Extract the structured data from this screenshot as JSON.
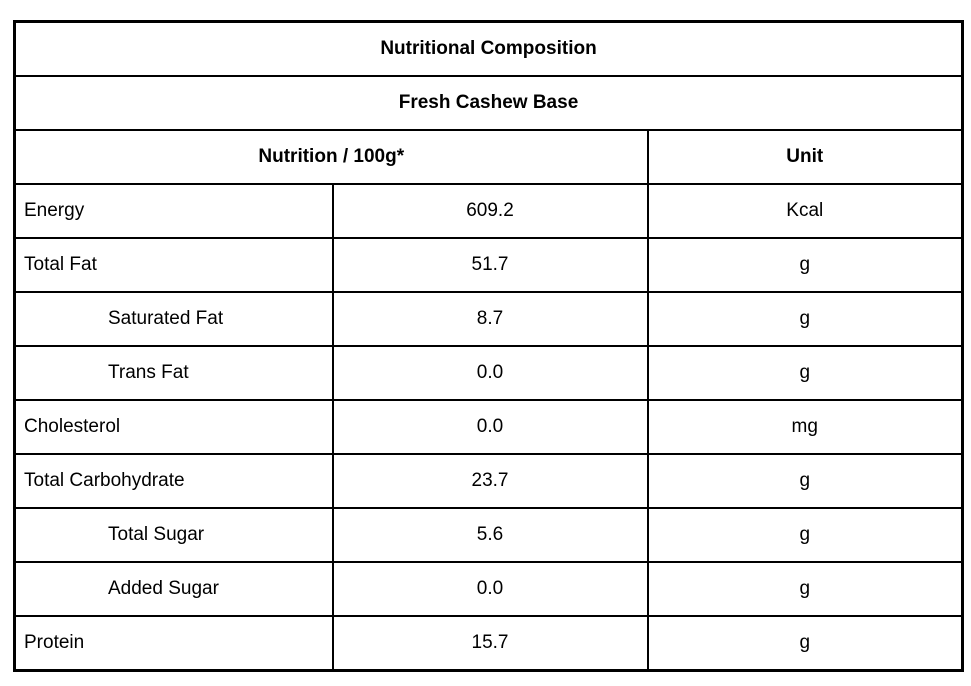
{
  "table": {
    "title": "Nutritional Composition",
    "subtitle": "Fresh Cashew Base",
    "columns": {
      "nutrition": "Nutrition / 100g*",
      "unit": "Unit"
    },
    "rows": [
      {
        "label": "Energy",
        "value": "609.2",
        "unit": "Kcal",
        "indent": false
      },
      {
        "label": "Total Fat",
        "value": "51.7",
        "unit": "g",
        "indent": false
      },
      {
        "label": "Saturated Fat",
        "value": "8.7",
        "unit": "g",
        "indent": true
      },
      {
        "label": "Trans Fat",
        "value": "0.0",
        "unit": "g",
        "indent": true
      },
      {
        "label": "Cholesterol",
        "value": "0.0",
        "unit": "mg",
        "indent": false
      },
      {
        "label": "Total Carbohydrate",
        "value": "23.7",
        "unit": "g",
        "indent": false
      },
      {
        "label": "Total Sugar",
        "value": "5.6",
        "unit": "g",
        "indent": true
      },
      {
        "label": "Added Sugar",
        "value": "0.0",
        "unit": "g",
        "indent": true
      },
      {
        "label": "Protein",
        "value": "15.7",
        "unit": "g",
        "indent": false
      }
    ],
    "colors": {
      "border": "#000000",
      "text": "#000000",
      "background": "#ffffff"
    }
  }
}
